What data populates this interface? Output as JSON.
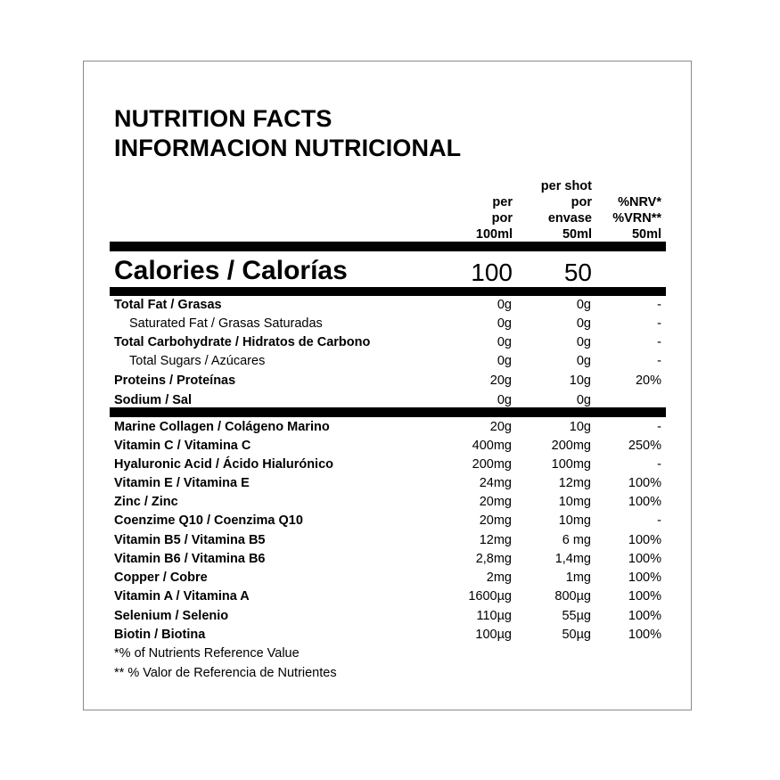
{
  "title_line1": "NUTRITION FACTS",
  "title_line2": "INFORMACION NUTRICIONAL",
  "headers": {
    "col1": [
      "per",
      "por",
      "100ml"
    ],
    "col2": [
      "per shot",
      "por",
      "envase",
      "50ml"
    ],
    "col3": [
      "%NRV*",
      "%VRN**",
      "50ml"
    ]
  },
  "calories": {
    "label": "Calories / Calorías",
    "per100": "100",
    "per_shot": "50"
  },
  "macros": [
    {
      "label": "Total Fat / Grasas",
      "per100": "0g",
      "per_shot": "0g",
      "nrv": "-"
    },
    {
      "label": "Saturated Fat / Grasas Saturadas",
      "per100": "0g",
      "per_shot": "0g",
      "nrv": "-"
    },
    {
      "label": "Total Carbohydrate / Hidratos de Carbono",
      "per100": "0g",
      "per_shot": "0g",
      "nrv": "-"
    },
    {
      "label": "Total Sugars / Azúcares",
      "per100": "0g",
      "per_shot": "0g",
      "nrv": "-"
    },
    {
      "label": "Proteins / Proteínas",
      "per100": "20g",
      "per_shot": "10g",
      "nrv": "20%"
    },
    {
      "label": "Sodium / Sal",
      "per100": "0g",
      "per_shot": "0g",
      "nrv": ""
    }
  ],
  "micros": [
    {
      "label": "Marine Collagen / Colágeno Marino",
      "per100": "20g",
      "per_shot": "10g",
      "nrv": "-"
    },
    {
      "label": "Vitamin C / Vitamina C",
      "per100": "400mg",
      "per_shot": "200mg",
      "nrv": "250%"
    },
    {
      "label": "Hyaluronic Acid / Ácido Hialurónico",
      "per100": "200mg",
      "per_shot": "100mg",
      "nrv": "-"
    },
    {
      "label": "Vitamin E / Vitamina E",
      "per100": "24mg",
      "per_shot": "12mg",
      "nrv": "100%"
    },
    {
      "label": "Zinc / Zinc",
      "per100": "20mg",
      "per_shot": "10mg",
      "nrv": "100%"
    },
    {
      "label": "Coenzime Q10 / Coenzima Q10",
      "per100": "20mg",
      "per_shot": "10mg",
      "nrv": "-"
    },
    {
      "label": "Vitamin B5 / Vitamina B5",
      "per100": "12mg",
      "per_shot": "6 mg",
      "nrv": "100%"
    },
    {
      "label": "Vitamin B6 / Vitamina B6",
      "per100": "2,8mg",
      "per_shot": "1,4mg",
      "nrv": "100%"
    },
    {
      "label": "Copper / Cobre",
      "per100": "2mg",
      "per_shot": "1mg",
      "nrv": "100%"
    },
    {
      "label": "Vitamin A / Vitamina A",
      "per100": "1600µg",
      "per_shot": "800µg",
      "nrv": "100%"
    },
    {
      "label": "Selenium / Selenio",
      "per100": "110µg",
      "per_shot": "55µg",
      "nrv": "100%"
    },
    {
      "label": "Biotin / Biotina",
      "per100": "100µg",
      "per_shot": "50µg",
      "nrv": "100%"
    }
  ],
  "footnotes": [
    "*% of Nutrients Reference Value",
    "** % Valor de Referencia de Nutrientes"
  ]
}
